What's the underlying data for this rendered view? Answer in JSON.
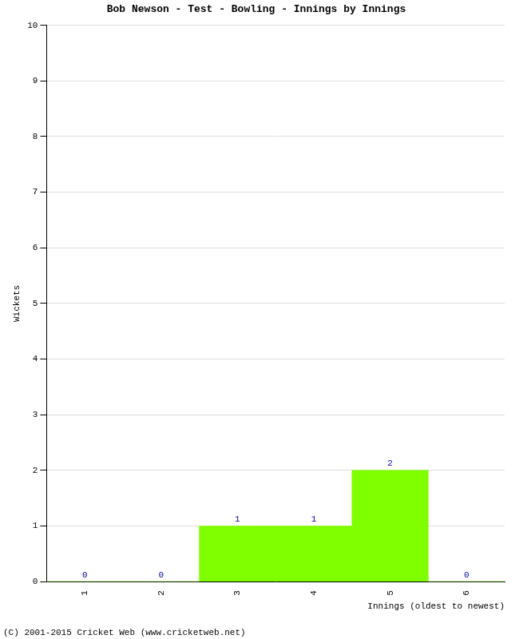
{
  "chart_data": {
    "type": "bar",
    "title": "Bob Newson - Test - Bowling - Innings by Innings",
    "x_label": "Innings (oldest to newest)",
    "y_label": "Wickets",
    "categories": [
      "1",
      "2",
      "3",
      "4",
      "5",
      "6"
    ],
    "values": [
      0,
      0,
      1,
      1,
      2,
      0
    ],
    "color": "#80ff00",
    "ylim": [
      0,
      10
    ],
    "yticks": [
      0,
      1,
      2,
      3,
      4,
      5,
      6,
      7,
      8,
      9,
      10
    ],
    "grid": true,
    "data_labels": true,
    "annotations": [
      "(C) 2001-2015 Cricket Web (www.cricketweb.net)"
    ]
  }
}
